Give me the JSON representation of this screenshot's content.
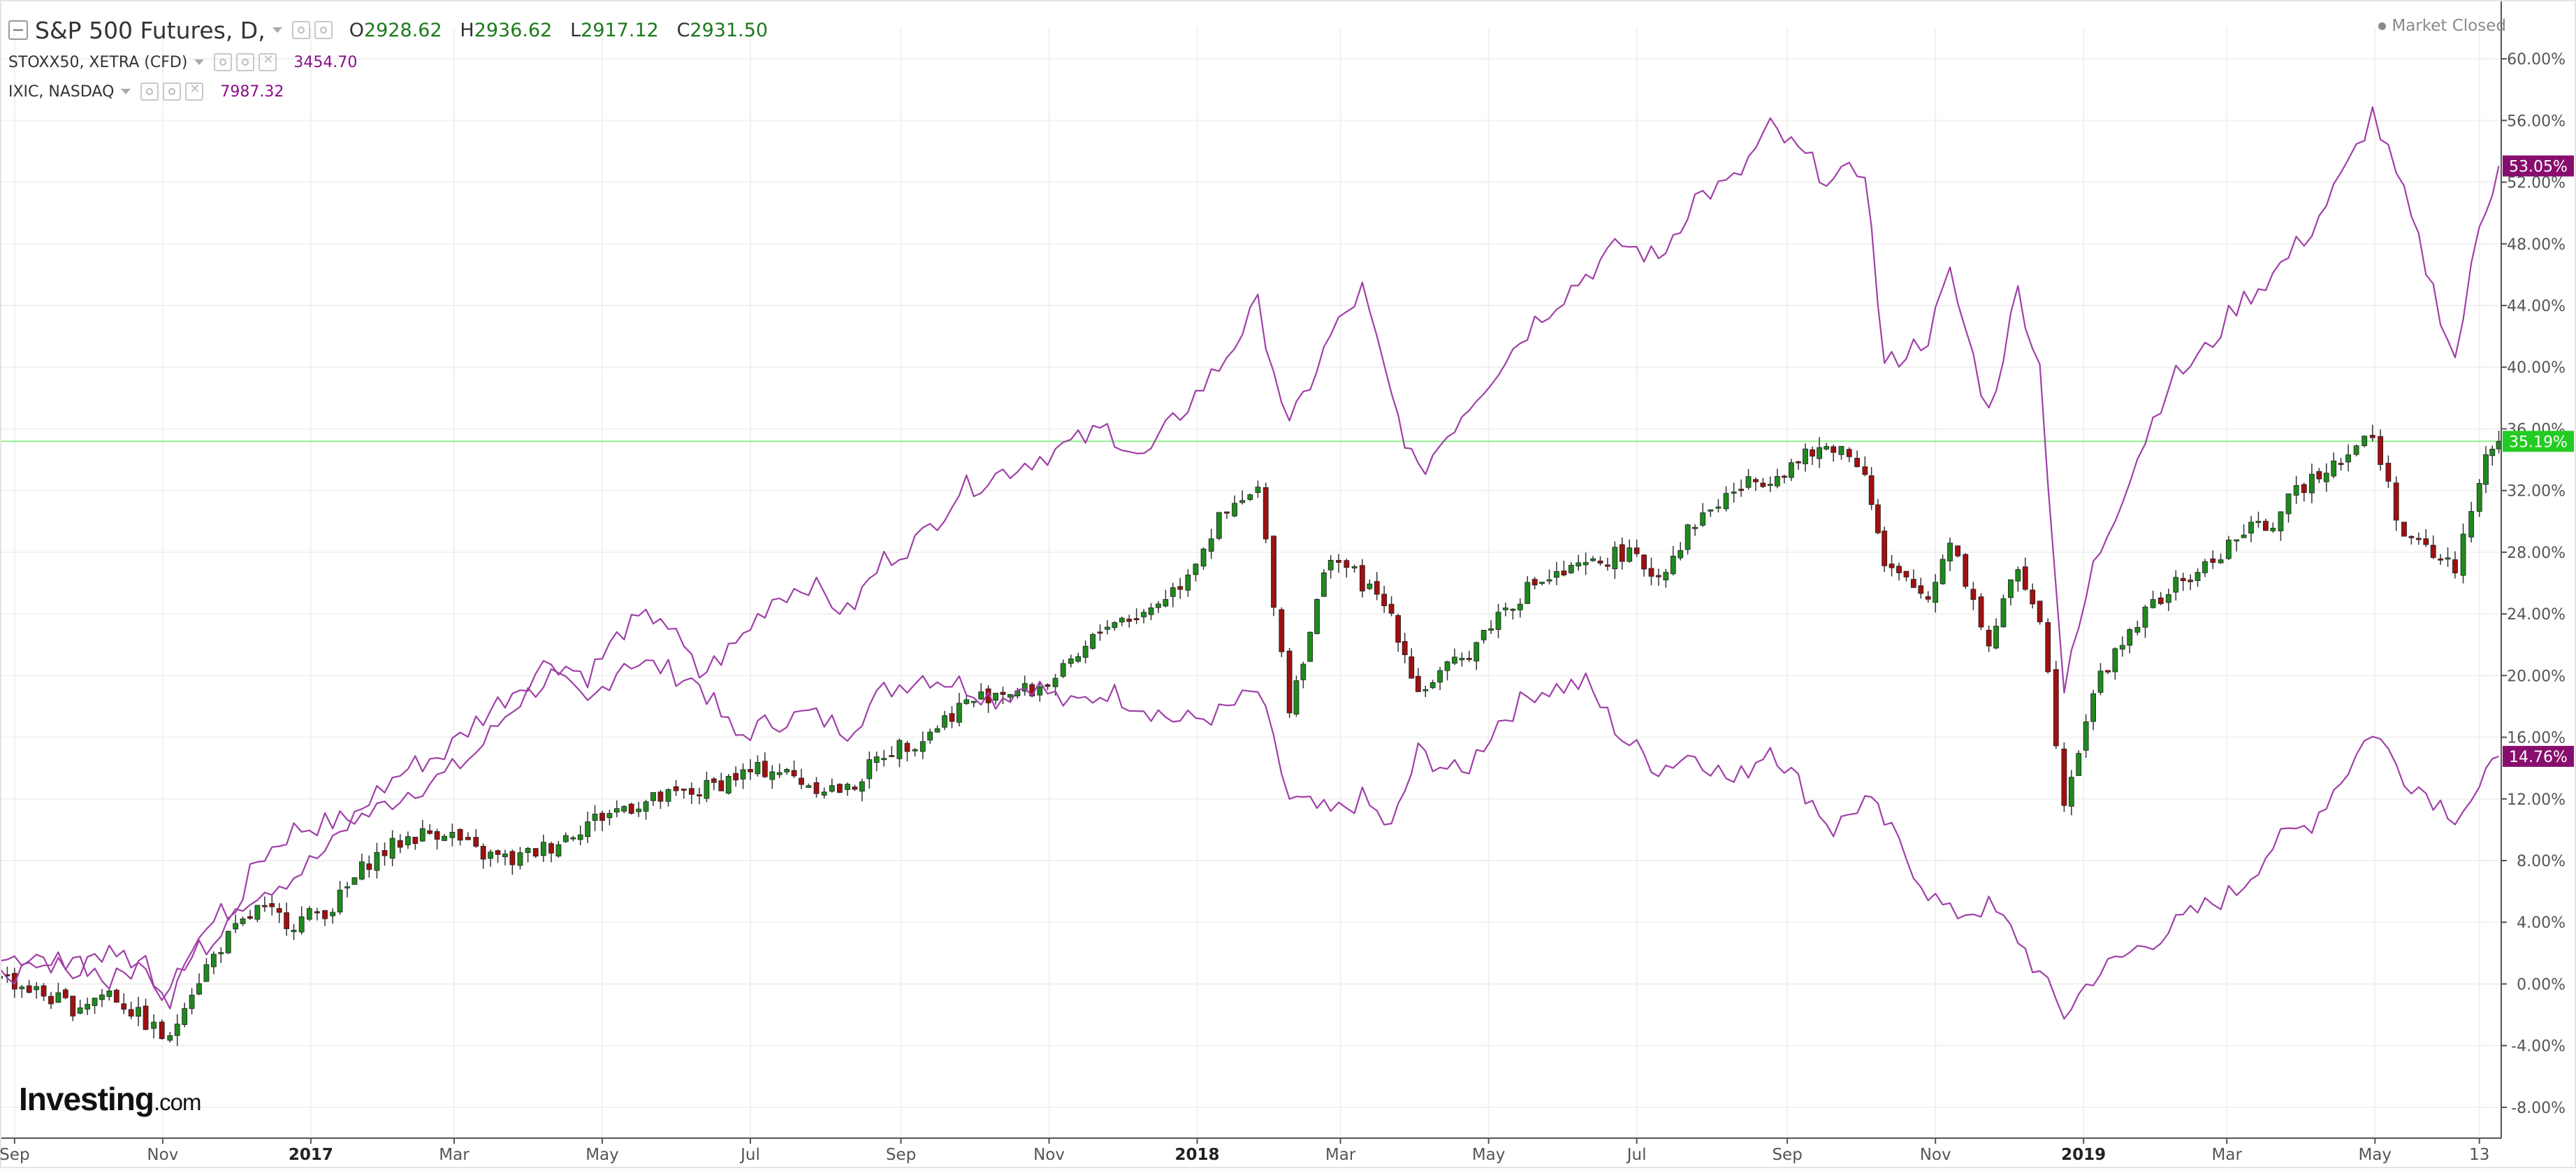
{
  "legend": {
    "main": {
      "label": "S&P 500 Futures, D,",
      "open_label": "O",
      "open": "2928.62",
      "high_label": "H",
      "high": "2936.62",
      "low_label": "L",
      "low": "2917.12",
      "close_label": "C",
      "close": "2931.50"
    },
    "series2": {
      "label": "STOXX50, XETRA (CFD)",
      "value": "3454.70"
    },
    "series3": {
      "label": "IXIC, NASDAQ",
      "value": "7987.32"
    }
  },
  "status": {
    "text": "Market Closed"
  },
  "logo": {
    "text": "Investing",
    "suffix": ".com"
  },
  "colors": {
    "up_candle": "#1e8a1e",
    "down_candle": "#a01010",
    "compare_line": "#a040a8",
    "current_line": "#8ef08e",
    "badge_green": "#22cc22",
    "badge_purple": "#880e6e"
  },
  "chart_data": {
    "type": "line",
    "title": "",
    "xlabel": "",
    "ylabel": "",
    "ylim": [
      -10,
      62
    ],
    "y_ticks": [
      "60.00%",
      "56.00%",
      "52.00%",
      "48.00%",
      "44.00%",
      "40.00%",
      "36.00%",
      "32.00%",
      "28.00%",
      "24.00%",
      "20.00%",
      "16.00%",
      "12.00%",
      "8.00%",
      "4.00%",
      "0.00%",
      "-4.00%",
      "-8.00%"
    ],
    "y_tick_values": [
      60,
      56,
      52,
      48,
      44,
      40,
      36,
      32,
      28,
      24,
      20,
      16,
      12,
      8,
      4,
      0,
      -4,
      -8
    ],
    "x_ticks": [
      "Sep",
      "Nov",
      "2017",
      "Mar",
      "May",
      "Jul",
      "Sep",
      "Nov",
      "2018",
      "Mar",
      "May",
      "Jul",
      "Sep",
      "Nov",
      "2019",
      "Mar",
      "May",
      "13"
    ],
    "x_tick_dates": [
      "2016-09-01",
      "2016-11-01",
      "2017-01-01",
      "2017-03-01",
      "2017-05-01",
      "2017-07-01",
      "2017-09-01",
      "2017-11-01",
      "2018-01-01",
      "2018-03-01",
      "2018-05-01",
      "2018-07-01",
      "2018-09-01",
      "2018-11-01",
      "2019-01-01",
      "2019-03-01",
      "2019-05-01",
      "2019-06-13"
    ],
    "x_range": [
      "2016-08-26",
      "2019-06-22"
    ],
    "current_value_line": 35.19,
    "series": [
      {
        "name": "S&P 500 Futures",
        "kind": "candlestick",
        "badge": "35.19%",
        "x": [
          "2016-08-26",
          "2016-09-10",
          "2016-09-25",
          "2016-10-10",
          "2016-10-25",
          "2016-11-04",
          "2016-11-10",
          "2016-11-25",
          "2016-12-10",
          "2016-12-25",
          "2017-01-10",
          "2017-01-25",
          "2017-02-10",
          "2017-02-25",
          "2017-03-10",
          "2017-03-25",
          "2017-04-10",
          "2017-04-25",
          "2017-05-10",
          "2017-05-25",
          "2017-06-10",
          "2017-06-25",
          "2017-07-10",
          "2017-07-25",
          "2017-08-10",
          "2017-08-25",
          "2017-09-10",
          "2017-09-25",
          "2017-10-10",
          "2017-10-25",
          "2017-11-10",
          "2017-11-25",
          "2017-12-10",
          "2017-12-25",
          "2018-01-10",
          "2018-01-26",
          "2018-02-08",
          "2018-02-25",
          "2018-03-10",
          "2018-03-22",
          "2018-04-02",
          "2018-04-20",
          "2018-05-05",
          "2018-05-20",
          "2018-06-10",
          "2018-06-25",
          "2018-07-10",
          "2018-07-25",
          "2018-08-10",
          "2018-08-25",
          "2018-09-20",
          "2018-10-03",
          "2018-10-11",
          "2018-10-29",
          "2018-11-07",
          "2018-11-23",
          "2018-12-05",
          "2018-12-14",
          "2018-12-24",
          "2019-01-05",
          "2019-01-20",
          "2019-02-05",
          "2019-02-20",
          "2019-03-05",
          "2019-03-20",
          "2019-04-05",
          "2019-04-20",
          "2019-04-30",
          "2019-05-13",
          "2019-06-03",
          "2019-06-13",
          "2019-06-21"
        ],
        "values": [
          0.5,
          -0.5,
          -1.5,
          -0.5,
          -2.5,
          -3.8,
          -1.0,
          2.5,
          4.8,
          4.0,
          5.0,
          8.0,
          9.5,
          10.0,
          8.5,
          8.0,
          9.0,
          10.5,
          11.5,
          12.0,
          12.5,
          13.5,
          14.0,
          13.0,
          12.5,
          15.0,
          16.0,
          18.0,
          19.0,
          19.0,
          20.5,
          23.5,
          24.0,
          26.0,
          30.0,
          32.0,
          18.0,
          28.0,
          26.0,
          24.0,
          19.0,
          21.0,
          24.0,
          26.0,
          27.0,
          28.0,
          26.5,
          30.0,
          32.0,
          33.0,
          35.0,
          33.5,
          27.0,
          25.0,
          29.0,
          22.0,
          27.0,
          24.0,
          12.0,
          19.0,
          23.0,
          25.5,
          27.0,
          29.0,
          30.0,
          33.0,
          34.5,
          35.5,
          29.0,
          27.0,
          33.0,
          35.19
        ]
      },
      {
        "name": "STOXX50, XETRA (CFD)",
        "kind": "line",
        "badge": "14.76%",
        "x": [
          "2016-08-26",
          "2016-09-10",
          "2016-09-25",
          "2016-10-10",
          "2016-10-25",
          "2016-11-04",
          "2016-11-10",
          "2016-11-25",
          "2016-12-10",
          "2016-12-25",
          "2017-01-10",
          "2017-01-25",
          "2017-02-10",
          "2017-02-25",
          "2017-03-10",
          "2017-03-25",
          "2017-04-10",
          "2017-04-25",
          "2017-05-10",
          "2017-05-25",
          "2017-06-10",
          "2017-06-25",
          "2017-07-10",
          "2017-07-25",
          "2017-08-10",
          "2017-08-25",
          "2017-09-10",
          "2017-09-25",
          "2017-10-10",
          "2017-10-25",
          "2017-11-10",
          "2017-11-25",
          "2017-12-10",
          "2017-12-25",
          "2018-01-10",
          "2018-01-26",
          "2018-02-08",
          "2018-02-25",
          "2018-03-10",
          "2018-03-22",
          "2018-04-02",
          "2018-04-20",
          "2018-05-05",
          "2018-05-20",
          "2018-06-10",
          "2018-06-25",
          "2018-07-10",
          "2018-07-25",
          "2018-08-10",
          "2018-08-25",
          "2018-09-20",
          "2018-10-03",
          "2018-10-11",
          "2018-10-29",
          "2018-11-07",
          "2018-11-23",
          "2018-12-05",
          "2018-12-14",
          "2018-12-24",
          "2019-01-05",
          "2019-01-20",
          "2019-02-05",
          "2019-02-20",
          "2019-03-05",
          "2019-03-20",
          "2019-04-05",
          "2019-04-20",
          "2019-04-30",
          "2019-05-13",
          "2019-06-03",
          "2019-06-13",
          "2019-06-21"
        ],
        "values": [
          1.5,
          2.0,
          0.5,
          2.5,
          1.0,
          -1.0,
          1.5,
          3.0,
          8.0,
          10.0,
          10.5,
          11.0,
          12.5,
          13.5,
          15.0,
          18.0,
          20.0,
          18.0,
          21.0,
          20.5,
          19.5,
          16.0,
          17.0,
          17.5,
          16.5,
          19.0,
          20.0,
          19.5,
          18.5,
          19.5,
          18.0,
          19.0,
          18.0,
          17.0,
          17.5,
          19.0,
          12.0,
          11.0,
          12.0,
          10.0,
          15.0,
          13.5,
          17.0,
          19.0,
          19.5,
          16.0,
          14.0,
          15.0,
          13.0,
          15.5,
          10.0,
          12.0,
          10.5,
          6.0,
          4.5,
          5.0,
          3.0,
          0.5,
          -2.0,
          0.5,
          2.0,
          3.5,
          5.0,
          6.0,
          9.0,
          10.5,
          14.0,
          16.5,
          13.5,
          11.0,
          12.5,
          14.76
        ]
      },
      {
        "name": "IXIC, NASDAQ",
        "kind": "line",
        "badge": "53.05%",
        "x": [
          "2016-08-26",
          "2016-09-10",
          "2016-09-25",
          "2016-10-10",
          "2016-10-25",
          "2016-11-04",
          "2016-11-10",
          "2016-11-25",
          "2016-12-10",
          "2016-12-25",
          "2017-01-10",
          "2017-01-25",
          "2017-02-10",
          "2017-02-25",
          "2017-03-10",
          "2017-03-25",
          "2017-04-10",
          "2017-04-25",
          "2017-05-10",
          "2017-05-25",
          "2017-06-10",
          "2017-06-25",
          "2017-07-10",
          "2017-07-25",
          "2017-08-10",
          "2017-08-25",
          "2017-09-10",
          "2017-09-25",
          "2017-10-10",
          "2017-10-25",
          "2017-11-10",
          "2017-11-25",
          "2017-12-10",
          "2017-12-25",
          "2018-01-10",
          "2018-01-26",
          "2018-02-08",
          "2018-02-25",
          "2018-03-10",
          "2018-03-22",
          "2018-04-02",
          "2018-04-20",
          "2018-05-05",
          "2018-05-20",
          "2018-06-10",
          "2018-06-25",
          "2018-07-10",
          "2018-07-25",
          "2018-08-10",
          "2018-08-25",
          "2018-09-20",
          "2018-10-03",
          "2018-10-11",
          "2018-10-29",
          "2018-11-07",
          "2018-11-23",
          "2018-12-05",
          "2018-12-14",
          "2018-12-24",
          "2019-01-05",
          "2019-01-20",
          "2019-02-05",
          "2019-02-20",
          "2019-03-05",
          "2019-03-20",
          "2019-04-05",
          "2019-04-20",
          "2019-04-30",
          "2019-05-13",
          "2019-06-03",
          "2019-06-13",
          "2019-06-21"
        ],
        "values": [
          1.0,
          0.5,
          2.0,
          0.0,
          1.5,
          -1.0,
          2.0,
          4.5,
          6.0,
          7.0,
          9.0,
          12.0,
          14.0,
          15.0,
          17.0,
          19.0,
          21.0,
          20.0,
          23.0,
          24.0,
          20.0,
          22.0,
          25.0,
          26.0,
          24.0,
          27.5,
          29.0,
          32.0,
          33.0,
          34.0,
          35.0,
          36.0,
          34.0,
          37.0,
          40.0,
          44.0,
          36.0,
          42.0,
          45.0,
          38.0,
          33.0,
          37.0,
          40.0,
          43.0,
          46.0,
          48.0,
          47.0,
          51.0,
          52.0,
          55.5,
          52.0,
          53.0,
          40.0,
          42.0,
          46.0,
          37.0,
          45.0,
          40.0,
          19.0,
          27.0,
          33.0,
          39.0,
          41.0,
          44.0,
          46.0,
          49.0,
          53.0,
          56.5,
          51.0,
          40.5,
          49.0,
          53.05
        ]
      }
    ]
  }
}
